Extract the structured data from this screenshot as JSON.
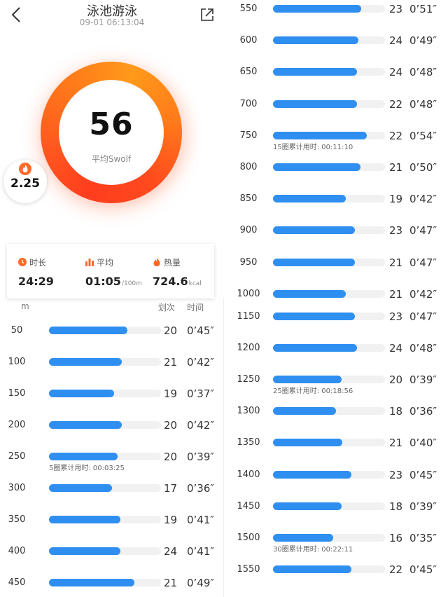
{
  "header": {
    "title": "泳池游泳",
    "subtitle": "09-01 06:13:04"
  },
  "summary": {
    "swolf_value": "56",
    "swolf_label": "平均Swolf",
    "badge_value": "2.25"
  },
  "stats": [
    {
      "label": "时长",
      "value": "24:29",
      "unit": ""
    },
    {
      "label": "平均",
      "value": "01:05",
      "unit": "/100m"
    },
    {
      "label": "热量",
      "value": "724.6",
      "unit": "kcal"
    }
  ],
  "list_header": {
    "distance": "m",
    "strokes": "划次",
    "time": "时间"
  },
  "colors": {
    "ring_red": "#ff3d1e",
    "ring_orange": "#ff9a1a",
    "bar": "#2f8ff0",
    "track": "#f1f1f1"
  },
  "laps_left": [
    {
      "distance": "50",
      "strokes": "20",
      "time": "0’45″",
      "level": 0.7
    },
    {
      "distance": "100",
      "strokes": "21",
      "time": "0’42″",
      "level": 0.65
    },
    {
      "distance": "150",
      "strokes": "19",
      "time": "0’37″",
      "level": 0.58
    },
    {
      "distance": "200",
      "strokes": "20",
      "time": "0’42″",
      "level": 0.65
    },
    {
      "distance": "250",
      "strokes": "20",
      "time": "0’39″",
      "level": 0.61,
      "note": "5圈累计用时: 00:03:25"
    },
    {
      "distance": "300",
      "strokes": "17",
      "time": "0’36″",
      "level": 0.56
    },
    {
      "distance": "350",
      "strokes": "19",
      "time": "0’41″",
      "level": 0.64
    },
    {
      "distance": "400",
      "strokes": "24",
      "time": "0’41″",
      "level": 0.64
    },
    {
      "distance": "450",
      "strokes": "21",
      "time": "0’49″",
      "level": 0.76
    }
  ],
  "laps_right_top": [
    {
      "distance": "550",
      "strokes": "23",
      "time": "0’51″",
      "level": 0.79
    },
    {
      "distance": "600",
      "strokes": "24",
      "time": "0’49″",
      "level": 0.76
    },
    {
      "distance": "650",
      "strokes": "24",
      "time": "0’48″",
      "level": 0.75
    },
    {
      "distance": "700",
      "strokes": "22",
      "time": "0’48″",
      "level": 0.75
    },
    {
      "distance": "750",
      "strokes": "22",
      "time": "0’54″",
      "level": 0.84,
      "note": "15圈累计用时: 00:11:10"
    },
    {
      "distance": "800",
      "strokes": "21",
      "time": "0’50″",
      "level": 0.78
    },
    {
      "distance": "850",
      "strokes": "19",
      "time": "0’42″",
      "level": 0.65
    },
    {
      "distance": "900",
      "strokes": "23",
      "time": "0’47″",
      "level": 0.73
    },
    {
      "distance": "950",
      "strokes": "21",
      "time": "0’47″",
      "level": 0.73
    },
    {
      "distance": "1000",
      "strokes": "21",
      "time": "0’42″",
      "level": 0.65
    }
  ],
  "laps_right_bottom": [
    {
      "distance": "1150",
      "strokes": "23",
      "time": "0’47″",
      "level": 0.73
    },
    {
      "distance": "1200",
      "strokes": "24",
      "time": "0’48″",
      "level": 0.75
    },
    {
      "distance": "1250",
      "strokes": "20",
      "time": "0’39″",
      "level": 0.61,
      "note": "25圈累计用时: 00:18:56"
    },
    {
      "distance": "1300",
      "strokes": "18",
      "time": "0’36″",
      "level": 0.56
    },
    {
      "distance": "1350",
      "strokes": "21",
      "time": "0’40″",
      "level": 0.62
    },
    {
      "distance": "1400",
      "strokes": "23",
      "time": "0’45″",
      "level": 0.7
    },
    {
      "distance": "1450",
      "strokes": "18",
      "time": "0’39″",
      "level": 0.61
    },
    {
      "distance": "1500",
      "strokes": "16",
      "time": "0’35″",
      "level": 0.54,
      "note": "30圈累计用时: 00:22:11"
    },
    {
      "distance": "1550",
      "strokes": "22",
      "time": "0’45″",
      "level": 0.7
    }
  ]
}
